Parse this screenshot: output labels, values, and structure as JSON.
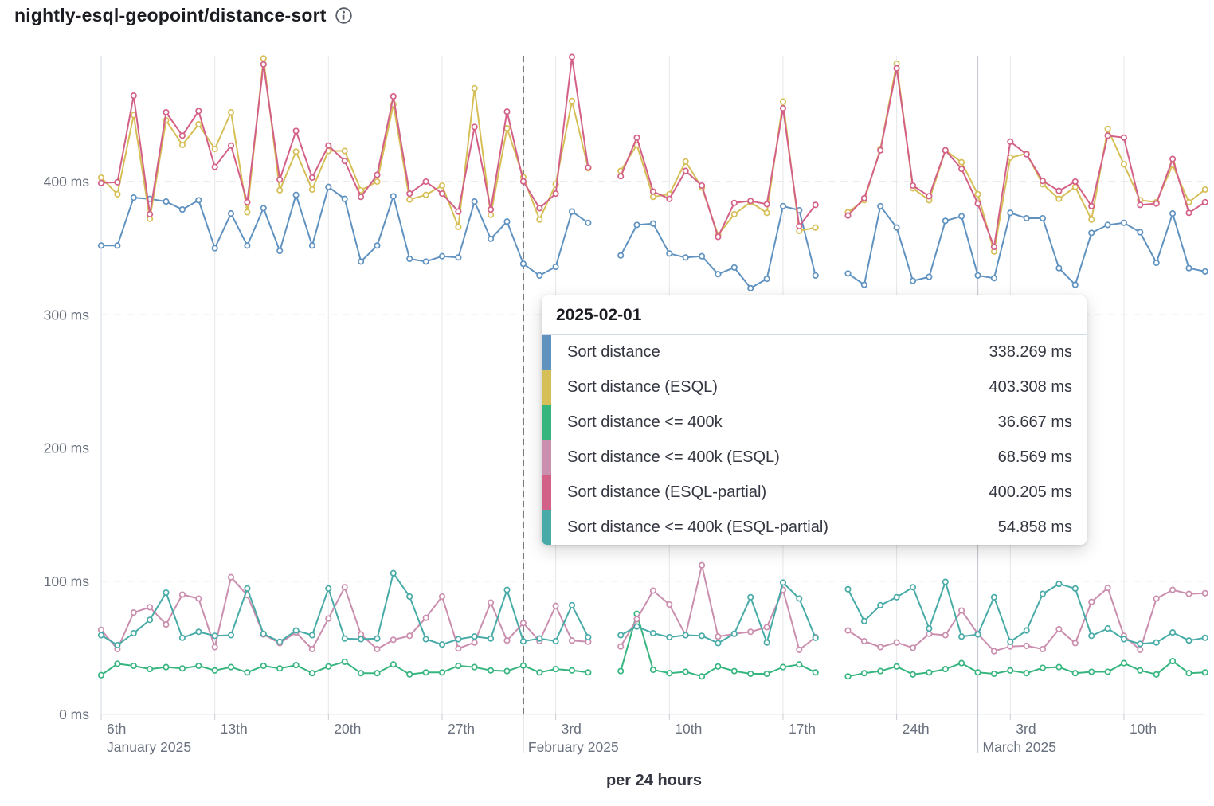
{
  "header": {
    "title": "nightly-esql-geopoint/distance-sort"
  },
  "footer": {
    "label": "per 24 hours"
  },
  "tooltip": {
    "title": "2025-02-01",
    "rows": [
      {
        "label": "Sort distance",
        "value": "338.269 ms",
        "color": "#6092C0"
      },
      {
        "label": "Sort distance (ESQL)",
        "value": "403.308 ms",
        "color": "#D6BF57"
      },
      {
        "label": "Sort distance <= 400k",
        "value": "36.667 ms",
        "color": "#36B57F"
      },
      {
        "label": "Sort distance <= 400k (ESQL)",
        "value": "68.569 ms",
        "color": "#CA8EAE"
      },
      {
        "label": "Sort distance (ESQL-partial)",
        "value": "400.205 ms",
        "color": "#D36086"
      },
      {
        "label": "Sort distance <= 400k (ESQL-partial)",
        "value": "54.858 ms",
        "color": "#48ABA7"
      }
    ]
  },
  "colors": {
    "axis_text": "#69707D",
    "grid": "#E6E7EA",
    "dashed_grid": "#D8D9DD",
    "month_line": "#C9CCD2",
    "axis_line": "#D3DAE6",
    "crosshair": "#54575E",
    "title": "#1A1C21",
    "footer": "#343741",
    "icon": "#5A6069"
  },
  "chart_data": {
    "type": "line",
    "title": "nightly-esql-geopoint/distance-sort",
    "xlabel": "per 24 hours",
    "ylabel": "ms",
    "ylim": [
      0,
      494
    ],
    "grid": true,
    "legend_position": "tooltip-only",
    "hover_date": "2025-02-01",
    "hover_index": 26,
    "gaps": [
      "2025-02-06",
      "2025-02-20"
    ],
    "y_ticks": [
      {
        "value": 0,
        "label": "0 ms"
      },
      {
        "value": 100,
        "label": "100 ms"
      },
      {
        "value": 200,
        "label": "200 ms"
      },
      {
        "value": 300,
        "label": "300 ms"
      },
      {
        "value": 400,
        "label": "400 ms"
      }
    ],
    "x_ticks": [
      {
        "offset": 0,
        "label": "6th"
      },
      {
        "offset": 7,
        "label": "13th"
      },
      {
        "offset": 14,
        "label": "20th"
      },
      {
        "offset": 21,
        "label": "27th"
      },
      {
        "offset": 28,
        "label": "3rd"
      },
      {
        "offset": 35,
        "label": "10th"
      },
      {
        "offset": 42,
        "label": "17th"
      },
      {
        "offset": 49,
        "label": "24th"
      },
      {
        "offset": 56,
        "label": "3rd"
      },
      {
        "offset": 63,
        "label": "10th"
      }
    ],
    "months": [
      {
        "offset": 0,
        "label": "January 2025",
        "boundary": false
      },
      {
        "offset": 26,
        "label": "February 2025",
        "boundary": true
      },
      {
        "offset": 54,
        "label": "March 2025",
        "boundary": true
      }
    ],
    "dates": [
      "2025-01-06",
      "2025-01-07",
      "2025-01-08",
      "2025-01-09",
      "2025-01-10",
      "2025-01-11",
      "2025-01-12",
      "2025-01-13",
      "2025-01-14",
      "2025-01-15",
      "2025-01-16",
      "2025-01-17",
      "2025-01-18",
      "2025-01-19",
      "2025-01-20",
      "2025-01-21",
      "2025-01-22",
      "2025-01-23",
      "2025-01-24",
      "2025-01-25",
      "2025-01-26",
      "2025-01-27",
      "2025-01-28",
      "2025-01-29",
      "2025-01-30",
      "2025-01-31",
      "2025-02-01",
      "2025-02-02",
      "2025-02-03",
      "2025-02-04",
      "2025-02-05",
      "2025-02-06",
      "2025-02-07",
      "2025-02-08",
      "2025-02-09",
      "2025-02-10",
      "2025-02-11",
      "2025-02-12",
      "2025-02-13",
      "2025-02-14",
      "2025-02-15",
      "2025-02-16",
      "2025-02-17",
      "2025-02-18",
      "2025-02-19",
      "2025-02-20",
      "2025-02-21",
      "2025-02-22",
      "2025-02-23",
      "2025-02-24",
      "2025-02-25",
      "2025-02-26",
      "2025-02-27",
      "2025-02-28",
      "2025-03-01",
      "2025-03-02",
      "2025-03-03",
      "2025-03-04",
      "2025-03-05",
      "2025-03-06",
      "2025-03-07",
      "2025-03-08",
      "2025-03-09",
      "2025-03-10",
      "2025-03-11",
      "2025-03-12",
      "2025-03-13",
      "2025-03-14",
      "2025-03-15"
    ],
    "series": [
      {
        "name": "Sort distance",
        "color": "#6092C0",
        "values": [
          352,
          352,
          388,
          387,
          385,
          379,
          386,
          350,
          376,
          352,
          380,
          348,
          390,
          352,
          396,
          387,
          340,
          352,
          389,
          342,
          340,
          344,
          343,
          385,
          357,
          370,
          338.269,
          329.5,
          336,
          377.5,
          369,
          null,
          344.5,
          367.5,
          368.5,
          346,
          343,
          344,
          330.5,
          335.5,
          320,
          327,
          381.5,
          378.5,
          329.5,
          null,
          331,
          322.5,
          381.5,
          365.5,
          325.5,
          328.5,
          370.5,
          374,
          329.5,
          327.5,
          376.5,
          372.5,
          372.5,
          335,
          322.5,
          361.5,
          367.5,
          369,
          362,
          339,
          376,
          335,
          332.5
        ]
      },
      {
        "name": "Sort distance (ESQL)",
        "color": "#D6BF57",
        "values": [
          403,
          390.5,
          450,
          372,
          446,
          427.5,
          443,
          424.5,
          452,
          377,
          492.5,
          393.5,
          422.5,
          394,
          423,
          423,
          393.5,
          400,
          458,
          386.5,
          390,
          397,
          366,
          470,
          375,
          440,
          403.308,
          371.5,
          398,
          460.5,
          410,
          null,
          408,
          427.5,
          388.5,
          390.5,
          415,
          395.5,
          360,
          375.5,
          384.5,
          376.5,
          460,
          363,
          365.5,
          null,
          377,
          386,
          424.5,
          488.5,
          395,
          386,
          423.5,
          414.5,
          390.5,
          347.5,
          418,
          421,
          398,
          387,
          396,
          371.5,
          439.5,
          413,
          386,
          384.5,
          412.5,
          384.5,
          394
        ]
      },
      {
        "name": "Sort distance <= 400k",
        "color": "#36B57F",
        "values": [
          29.5,
          38,
          36.5,
          34,
          35.5,
          34.5,
          36.5,
          33,
          35.5,
          31.5,
          36.5,
          34.5,
          37,
          31,
          36,
          39.5,
          31,
          31,
          37.5,
          30,
          31.5,
          31.5,
          36.5,
          35.5,
          33,
          32.5,
          36.667,
          31.5,
          34,
          33,
          31.5,
          null,
          32.5,
          75.5,
          33.5,
          31,
          32,
          28.5,
          36,
          32.5,
          30.5,
          30.5,
          35.5,
          37.5,
          31.5,
          null,
          28.5,
          31,
          32.5,
          36,
          30,
          31.5,
          34,
          38.5,
          31.5,
          30.5,
          33,
          31,
          35,
          35.5,
          31,
          32,
          32,
          38.5,
          33,
          30,
          40,
          31,
          31.5
        ]
      },
      {
        "name": "Sort distance <= 400k (ESQL)",
        "color": "#CA8EAE",
        "values": [
          63.5,
          49,
          76.5,
          80.5,
          67.5,
          90,
          87,
          50.5,
          103,
          89.5,
          60,
          53.5,
          61.5,
          49,
          72,
          95.5,
          60,
          49,
          56,
          59,
          72.5,
          88.5,
          49.5,
          54,
          84,
          55.5,
          68.569,
          55,
          81.5,
          55.5,
          54.5,
          null,
          51,
          71.5,
          93,
          82.5,
          59.5,
          112,
          58.5,
          60.5,
          62,
          65.5,
          93.5,
          48.5,
          58,
          null,
          63,
          55,
          50.5,
          54,
          50,
          60.5,
          59.5,
          78,
          60.5,
          47.5,
          51,
          51.5,
          49,
          64,
          53.5,
          84.5,
          95,
          59,
          48.5,
          87,
          93.5,
          90.5,
          91
        ]
      },
      {
        "name": "Sort distance (ESQL-partial)",
        "color": "#D36086",
        "values": [
          399,
          399.5,
          464.5,
          375.5,
          452,
          434.5,
          453,
          411,
          427,
          384.5,
          488,
          401.5,
          438,
          403,
          427,
          415.5,
          388.5,
          405,
          464,
          391,
          400,
          391,
          377.5,
          441,
          379,
          452.5,
          400.205,
          380,
          391,
          493.5,
          410.5,
          null,
          404,
          433,
          392.5,
          387,
          408,
          397,
          358.5,
          384,
          385.5,
          383,
          455,
          366.5,
          382.5,
          null,
          374.5,
          387.5,
          423.5,
          485,
          397,
          389,
          423.5,
          409.5,
          383.5,
          351,
          430,
          420.5,
          400.5,
          393,
          400,
          381.5,
          434.5,
          433,
          382.5,
          383.5,
          417,
          376.5,
          384.5
        ]
      },
      {
        "name": "Sort distance <= 400k (ESQL-partial)",
        "color": "#48ABA7",
        "values": [
          59.5,
          52,
          61,
          71,
          91.5,
          57.5,
          62,
          59,
          59.5,
          94.5,
          60.5,
          54.5,
          63,
          59.5,
          94.5,
          57,
          56.5,
          57,
          106,
          88.5,
          56.5,
          52.5,
          56.5,
          58.5,
          57,
          93.5,
          54.858,
          57,
          55,
          82,
          58,
          null,
          59.5,
          66,
          61,
          58,
          59.5,
          59,
          53.5,
          60.5,
          88,
          54,
          99,
          87,
          57.5,
          null,
          94,
          70,
          82,
          88,
          95.5,
          64.5,
          99.5,
          58.5,
          60,
          88,
          54.5,
          63,
          90.5,
          98,
          94.5,
          59,
          64.5,
          56.5,
          53,
          54,
          61.5,
          55.5,
          57.5
        ]
      }
    ]
  }
}
